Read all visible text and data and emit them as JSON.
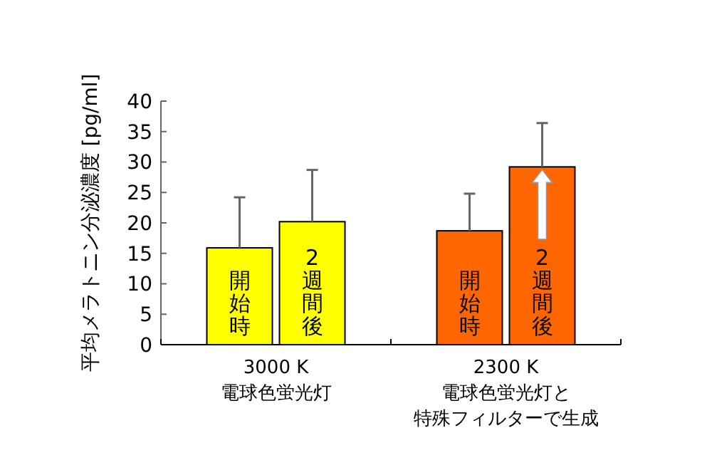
{
  "chart_data": {
    "type": "bar",
    "ylabel": "平均メラトニン分泌濃度 [pg/ml]",
    "categories": [
      "3000 K\n電球色蛍光灯",
      "2300 K\n電球色蛍光灯と特殊フィルターで生成"
    ],
    "series": [
      {
        "name": "開始時",
        "colors": [
          "#ffff00",
          "#ff6600"
        ],
        "values": [
          15.9,
          18.7
        ],
        "errors": [
          [
            15.9,
            24.2
          ],
          [
            18.7,
            24.8
          ]
        ]
      },
      {
        "name": "2週間後",
        "colors": [
          "#ffff00",
          "#ff6600"
        ],
        "values": [
          20.2,
          29.2
        ],
        "errors": [
          [
            20.2,
            28.7
          ],
          [
            29.2,
            36.4
          ]
        ]
      }
    ],
    "ylim": [
      0,
      40
    ],
    "yticks": [
      0,
      5,
      10,
      15,
      20,
      25,
      30,
      35,
      40
    ],
    "grid": false
  }
}
